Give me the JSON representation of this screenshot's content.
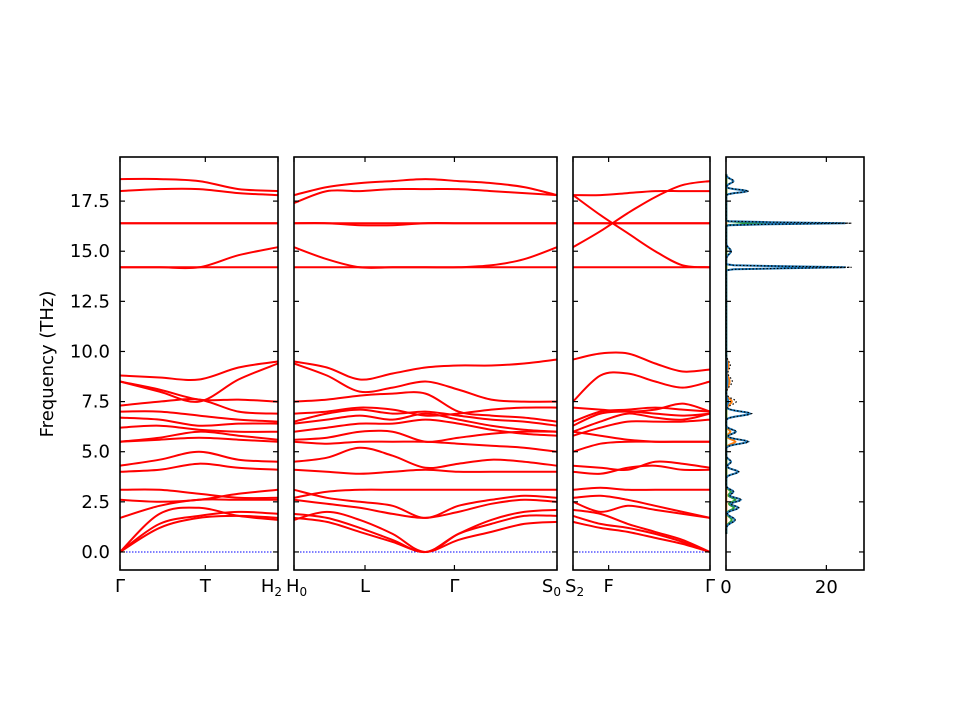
{
  "chart_data": {
    "type": "line",
    "title": "",
    "ylabel": "Frequency (THz)",
    "ylim": [
      -0.9,
      19.7
    ],
    "yticks": [
      "0.0",
      "2.5",
      "5.0",
      "7.5",
      "10.0",
      "12.5",
      "15.0",
      "17.5"
    ],
    "band_color": "#ff0000",
    "zero_line_color": "#0000ff",
    "segments": [
      {
        "labels": [
          "Γ",
          "T",
          "H2"
        ],
        "label_positions": [
          0,
          0.54,
          1
        ],
        "bands": [
          [
            0,
            1.2,
            1.7,
            1.8,
            1.7
          ],
          [
            0,
            1.4,
            1.8,
            2.0,
            1.9
          ],
          [
            0,
            1.9,
            2.2,
            1.8,
            1.6
          ],
          [
            1.7,
            2.3,
            2.6,
            2.6,
            2.6
          ],
          [
            2.6,
            2.5,
            2.6,
            2.9,
            3.1
          ],
          [
            3.1,
            3.1,
            2.9,
            2.7,
            2.7
          ],
          [
            4.0,
            4.1,
            4.4,
            4.2,
            4.1
          ],
          [
            4.3,
            4.6,
            5.0,
            4.6,
            4.5
          ],
          [
            5.5,
            5.6,
            5.7,
            5.6,
            5.5
          ],
          [
            5.5,
            5.7,
            6.0,
            5.8,
            5.6
          ],
          [
            6.2,
            6.3,
            6.1,
            6.0,
            6.0
          ],
          [
            6.7,
            6.6,
            6.3,
            6.4,
            6.4
          ],
          [
            7.0,
            7.0,
            6.8,
            6.6,
            6.5
          ],
          [
            7.3,
            7.5,
            7.6,
            7.0,
            6.9
          ],
          [
            8.5,
            8.1,
            7.6,
            7.6,
            7.5
          ],
          [
            8.5,
            8.0,
            7.5,
            8.6,
            9.4
          ],
          [
            8.8,
            8.7,
            8.6,
            9.2,
            9.5
          ],
          [
            14.2,
            14.2,
            14.2,
            14.2,
            14.2
          ],
          [
            14.2,
            14.2,
            14.2,
            14.8,
            15.2
          ],
          [
            16.4,
            16.4,
            16.4,
            16.4,
            16.4
          ],
          [
            16.4,
            16.4,
            16.4,
            16.4,
            16.4
          ],
          [
            18.0,
            18.1,
            18.1,
            17.9,
            17.8
          ],
          [
            18.6,
            18.6,
            18.5,
            18.1,
            18.0
          ]
        ]
      },
      {
        "labels": [
          "H0",
          "L",
          "Γ",
          "S0"
        ],
        "label_positions": [
          0,
          0.27,
          0.61,
          1
        ],
        "bands": [
          [
            1.7,
            1.5,
            1.0,
            0.5,
            0,
            0.6,
            1.0,
            1.4,
            1.5
          ],
          [
            1.9,
            1.7,
            1.2,
            0.6,
            0,
            0.9,
            1.4,
            1.8,
            1.8
          ],
          [
            1.6,
            2.0,
            1.6,
            0.9,
            0,
            0.9,
            1.6,
            2.0,
            2.1
          ],
          [
            2.6,
            2.4,
            2.2,
            1.9,
            1.7,
            2.0,
            2.4,
            2.6,
            2.5
          ],
          [
            3.1,
            2.7,
            2.5,
            2.3,
            1.7,
            2.3,
            2.6,
            2.8,
            2.7
          ],
          [
            2.7,
            3.0,
            3.1,
            3.1,
            3.1,
            3.1,
            3.1,
            3.1,
            3.1
          ],
          [
            4.1,
            4.0,
            3.9,
            4.0,
            4.1,
            4.0,
            4.0,
            4.0,
            4.0
          ],
          [
            4.5,
            4.7,
            5.2,
            4.8,
            4.2,
            4.4,
            4.6,
            4.5,
            4.3
          ],
          [
            5.5,
            5.4,
            5.5,
            5.5,
            5.5,
            5.4,
            5.3,
            5.2,
            5.0
          ],
          [
            5.6,
            5.7,
            6.0,
            6.0,
            5.5,
            5.7,
            5.9,
            6.0,
            6.0
          ],
          [
            6.0,
            6.2,
            6.4,
            6.4,
            6.6,
            6.4,
            6.1,
            5.9,
            5.8
          ],
          [
            6.4,
            6.6,
            6.8,
            6.6,
            6.9,
            6.6,
            6.3,
            6.1,
            6.0
          ],
          [
            6.5,
            6.9,
            7.1,
            6.9,
            7.0,
            6.8,
            6.6,
            6.5,
            6.3
          ],
          [
            6.9,
            7.0,
            7.2,
            7.1,
            6.8,
            6.9,
            7.1,
            7.2,
            7.2
          ],
          [
            7.5,
            7.6,
            7.8,
            7.9,
            7.9,
            7.0,
            6.8,
            6.7,
            6.5
          ],
          [
            9.4,
            8.8,
            8.0,
            8.2,
            8.5,
            8.1,
            7.6,
            7.5,
            7.5
          ],
          [
            9.5,
            9.2,
            8.6,
            8.9,
            9.2,
            9.3,
            9.3,
            9.4,
            9.6
          ],
          [
            14.2,
            14.2,
            14.2,
            14.2,
            14.2,
            14.2,
            14.2,
            14.2,
            14.2
          ],
          [
            15.2,
            14.6,
            14.2,
            14.2,
            14.2,
            14.2,
            14.3,
            14.6,
            15.2
          ],
          [
            16.4,
            16.4,
            16.4,
            16.4,
            16.4,
            16.4,
            16.4,
            16.4,
            16.4
          ],
          [
            16.4,
            16.4,
            16.3,
            16.3,
            16.4,
            16.4,
            16.4,
            16.4,
            16.4
          ],
          [
            17.4,
            18.0,
            18.0,
            18.1,
            18.1,
            18.1,
            18.0,
            17.9,
            17.8
          ],
          [
            17.8,
            18.2,
            18.4,
            18.5,
            18.6,
            18.5,
            18.4,
            18.2,
            17.8
          ]
        ]
      },
      {
        "labels": [
          "S2",
          "F",
          "Γ"
        ],
        "label_positions": [
          0,
          0.26,
          1
        ],
        "bands": [
          [
            1.5,
            1.2,
            1.0,
            0.7,
            0.4,
            0
          ],
          [
            1.8,
            1.4,
            1.2,
            0.9,
            0.5,
            0
          ],
          [
            2.1,
            1.9,
            1.4,
            1.0,
            0.6,
            0
          ],
          [
            2.5,
            2.0,
            2.3,
            2.1,
            1.9,
            1.7
          ],
          [
            2.7,
            2.8,
            2.6,
            2.3,
            2.0,
            1.7
          ],
          [
            3.1,
            3.2,
            3.1,
            3.1,
            3.1,
            3.1
          ],
          [
            4.0,
            3.9,
            4.2,
            4.3,
            4.1,
            4.1
          ],
          [
            4.3,
            4.2,
            4.1,
            4.5,
            4.4,
            4.2
          ],
          [
            5.0,
            5.4,
            5.5,
            5.5,
            5.5,
            5.5
          ],
          [
            6.0,
            5.8,
            5.6,
            5.5,
            5.5,
            5.5
          ],
          [
            5.8,
            6.2,
            6.5,
            6.5,
            6.5,
            6.6
          ],
          [
            6.0,
            6.5,
            6.9,
            6.7,
            6.6,
            6.9
          ],
          [
            6.3,
            6.9,
            7.0,
            6.9,
            6.8,
            6.9
          ],
          [
            7.2,
            7.1,
            7.0,
            7.1,
            7.4,
            7.0
          ],
          [
            6.5,
            7.0,
            7.1,
            7.2,
            7.1,
            7.0
          ],
          [
            7.5,
            8.8,
            8.9,
            8.5,
            8.2,
            8.5
          ],
          [
            9.6,
            9.9,
            9.9,
            9.4,
            9.0,
            9.1
          ],
          [
            14.2,
            14.2,
            14.2,
            14.2,
            14.2,
            14.2
          ],
          [
            15.2,
            16.0,
            16.9,
            17.7,
            18.3,
            18.5
          ],
          [
            16.4,
            16.4,
            16.4,
            16.4,
            16.4,
            16.4
          ],
          [
            16.4,
            16.4,
            16.4,
            16.4,
            16.4,
            16.4
          ],
          [
            17.8,
            16.8,
            15.9,
            15.0,
            14.3,
            14.2
          ],
          [
            17.8,
            17.8,
            17.9,
            18.0,
            18.0,
            18.0
          ]
        ]
      }
    ],
    "dos": {
      "xlim": [
        0,
        27.5
      ],
      "xticks": [
        "0",
        "20"
      ],
      "xtick_values": [
        0,
        20
      ],
      "colors": [
        "#1f77b4",
        "#ff7f0e",
        "#2ca02c",
        "#000000"
      ],
      "total_peaks": [
        [
          1.6,
          1.8,
          0.2
        ],
        [
          2.2,
          2.5,
          0.15
        ],
        [
          2.6,
          3.0,
          0.15
        ],
        [
          3.0,
          1.5,
          0.15
        ],
        [
          4.0,
          2.5,
          0.15
        ],
        [
          4.5,
          1.0,
          0.15
        ],
        [
          5.5,
          4.5,
          0.15
        ],
        [
          6.0,
          2.0,
          0.15
        ],
        [
          6.9,
          5.0,
          0.15
        ],
        [
          7.5,
          2.0,
          0.2
        ],
        [
          8.5,
          1.2,
          0.3
        ],
        [
          9.3,
          0.8,
          0.3
        ],
        [
          14.2,
          25.0,
          0.06
        ],
        [
          15.0,
          1.0,
          0.2
        ],
        [
          16.4,
          25.0,
          0.05
        ],
        [
          18.0,
          4.5,
          0.1
        ],
        [
          18.5,
          1.5,
          0.15
        ]
      ]
    }
  }
}
